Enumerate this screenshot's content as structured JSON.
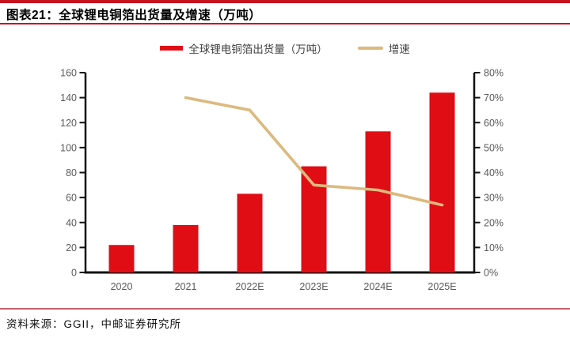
{
  "header": {
    "title": "图表21：全球锂电铜箔出货量及增速（万吨）"
  },
  "legend": {
    "items": [
      {
        "label": "全球锂电铜箔出货量（万吨）",
        "swatch": "bar"
      },
      {
        "label": "增速",
        "swatch": "line"
      }
    ]
  },
  "footer": {
    "source": "资料来源：GGII，中邮证券研究所"
  },
  "colors": {
    "bar": "#e00d15",
    "line": "#dcb97e",
    "rule_dark": "#c5121f",
    "rule_light": "#cb636d",
    "axis": "#111111",
    "tick_label": "#595959",
    "legend_text": "#3f3f3f"
  },
  "chart_data": {
    "type": "bar",
    "title": "全球锂电铜箔出货量及增速（万吨）",
    "categories": [
      "2020",
      "2021",
      "2022E",
      "2023E",
      "2024E",
      "2025E"
    ],
    "series": [
      {
        "name": "全球锂电铜箔出货量（万吨）",
        "type": "bar",
        "axis": "left",
        "values": [
          22,
          38,
          63,
          85,
          113,
          144
        ]
      },
      {
        "name": "增速",
        "type": "line",
        "axis": "right",
        "unit": "%",
        "values": [
          null,
          70,
          65,
          35,
          33,
          27
        ]
      }
    ],
    "left_axis": {
      "min": 0,
      "max": 160,
      "step": 20
    },
    "right_axis": {
      "min": 0,
      "max": 80,
      "step": 10,
      "suffix": "%"
    },
    "grid": false,
    "legend_position": "top"
  }
}
